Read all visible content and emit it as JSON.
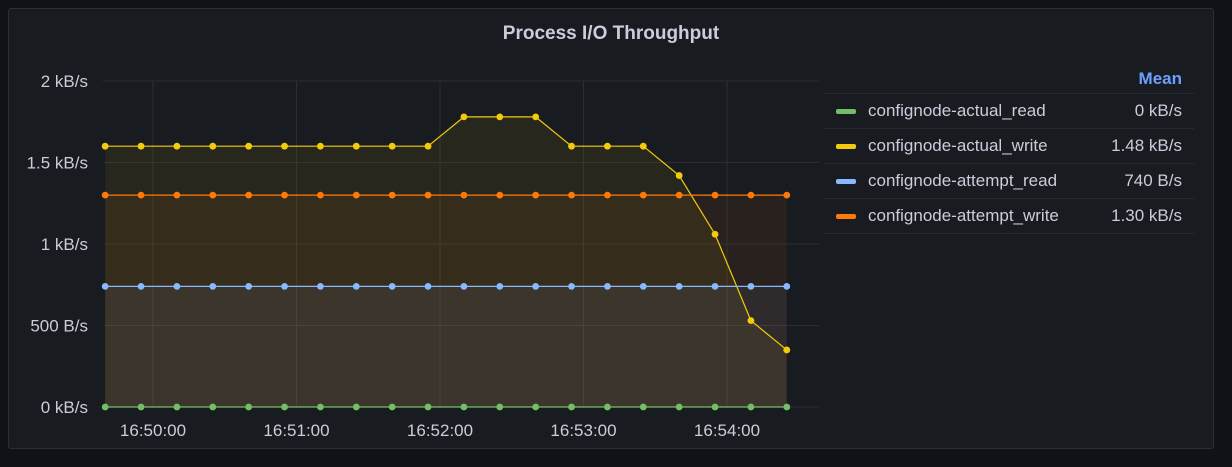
{
  "panel": {
    "title": "Process I/O Throughput"
  },
  "legend": {
    "column_header": "Mean"
  },
  "chart_data": {
    "type": "line",
    "title": "Process I/O Throughput",
    "x_ticks": [
      "16:50:00",
      "16:51:00",
      "16:52:00",
      "16:53:00",
      "16:54:00"
    ],
    "y_ticks": [
      "2 kB/s",
      "1.5 kB/s",
      "1 kB/s",
      "500 B/s",
      "0 kB/s"
    ],
    "y_tick_values": [
      2000,
      1500,
      1000,
      500,
      0
    ],
    "ylim": [
      0,
      2000
    ],
    "x_start": "16:49:40",
    "x_step_seconds": 15,
    "grid": true,
    "legend_position": "right",
    "series": [
      {
        "name": "confignode-actual_read",
        "color": "#73bf69",
        "mean": "0 kB/s",
        "values": [
          0,
          0,
          0,
          0,
          0,
          0,
          0,
          0,
          0,
          0,
          0,
          0,
          0,
          0,
          0,
          0,
          0,
          0,
          0,
          0
        ]
      },
      {
        "name": "confignode-actual_write",
        "color": "#f2cc0c",
        "mean": "1.48 kB/s",
        "values": [
          1600,
          1600,
          1600,
          1600,
          1600,
          1600,
          1600,
          1600,
          1600,
          1600,
          1780,
          1780,
          1780,
          1600,
          1600,
          1600,
          1420,
          1060,
          530,
          350
        ]
      },
      {
        "name": "confignode-attempt_read",
        "color": "#8ab8ff",
        "mean": "740 B/s",
        "values": [
          740,
          740,
          740,
          740,
          740,
          740,
          740,
          740,
          740,
          740,
          740,
          740,
          740,
          740,
          740,
          740,
          740,
          740,
          740,
          740
        ]
      },
      {
        "name": "confignode-attempt_write",
        "color": "#ff780a",
        "mean": "1.30 kB/s",
        "values": [
          1300,
          1300,
          1300,
          1300,
          1300,
          1300,
          1300,
          1300,
          1300,
          1300,
          1300,
          1300,
          1300,
          1300,
          1300,
          1300,
          1300,
          1300,
          1300,
          1300
        ]
      }
    ]
  }
}
